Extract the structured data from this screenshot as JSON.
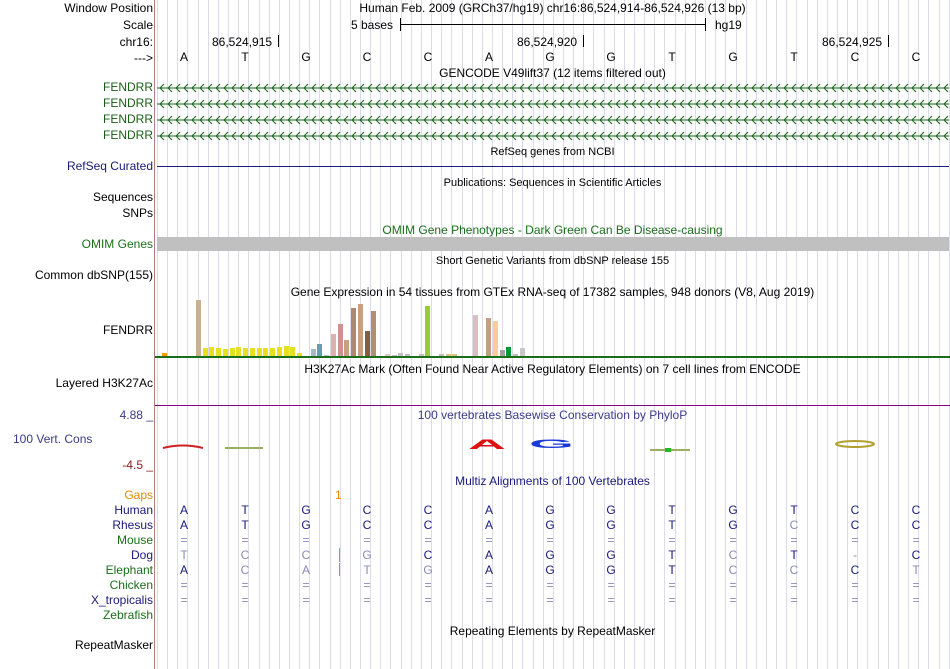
{
  "header": {
    "window_position_label": "Window Position",
    "scale_label": "Scale",
    "chrom_label": "chr16:",
    "strand_label": "--->",
    "position_text": "Human Feb. 2009 (GRCh37/hg19)   chr16:86,524,914-86,524,926 (13 bp)",
    "scale_text": "5 bases",
    "assembly": "hg19",
    "ruler_ticks": [
      "86,524,915",
      "86,524,920",
      "86,524,925"
    ]
  },
  "sequence": [
    "A",
    "T",
    "G",
    "C",
    "C",
    "A",
    "G",
    "G",
    "T",
    "G",
    "T",
    "C",
    "C"
  ],
  "tracks": {
    "gencode": {
      "title": "GENCODE V49lift37 (12 items filtered out)",
      "items": [
        "FENDRR",
        "FENDRR",
        "FENDRR",
        "FENDRR"
      ],
      "color": "#1a5e1a"
    },
    "refseq": {
      "label": "RefSeq Curated",
      "title": "RefSeq genes from NCBI",
      "color": "#1a1a7a"
    },
    "publications": {
      "label_line1": "Sequences",
      "title": "Publications: Sequences in Scientific Articles"
    },
    "snps": {
      "label": "SNPs"
    },
    "omim": {
      "label": "OMIM Genes",
      "title": "OMIM Gene Phenotypes - Dark Green Can Be Disease-causing",
      "color": "#1a6e1a"
    },
    "dbsnp": {
      "label": "Common dbSNP(155)",
      "title": "Short Genetic Variants from dbSNP release 155"
    },
    "gtex": {
      "label": "FENDRR",
      "title": "Gene Expression in 54 tissues from GTEx RNA-seq of 17382 samples, 948 donors (V8, Aug 2019)",
      "colors": [
        "#ff9900",
        "#ffffff",
        "#ffffff",
        "#ffffff",
        "#ffffff",
        "#c8b090",
        "#e6e020",
        "#e6e020",
        "#e6e020",
        "#e6e020",
        "#e6e020",
        "#e6e020",
        "#e6e020",
        "#e6e020",
        "#e6e020",
        "#e6e020",
        "#e6e020",
        "#e6e020",
        "#e6e020",
        "#e6e020",
        "#e6e020",
        "#ffffff",
        "#a0b8d0",
        "#60a0b0",
        "#c0c0c0",
        "#e0b0b0",
        "#d09090",
        "#c8a080",
        "#b08870",
        "#c8a080",
        "#806040",
        "#b09070",
        "#ffffff",
        "#e0c8c0",
        "#c0c0c0",
        "#c0c0c0",
        "#c0c0c0",
        "#ffffff",
        "#c0c0c0",
        "#99cc33",
        "#ffffff",
        "#c0c0c0",
        "#e0c080",
        "#e0c080",
        "#ffffff",
        "#ffffff",
        "#d8c0c0",
        "#ffffff",
        "#c0a080",
        "#ffcc99",
        "#a0a0a0",
        "#009933",
        "#c0c0c0",
        "#c8c8c8"
      ],
      "values": [
        0.06,
        0,
        0,
        0,
        0,
        1.0,
        0.14,
        0.16,
        0.14,
        0.12,
        0.14,
        0.16,
        0.14,
        0.14,
        0.14,
        0.14,
        0.14,
        0.16,
        0.18,
        0.16,
        0.06,
        0,
        0.12,
        0.22,
        0.02,
        0.4,
        0.58,
        0.28,
        0.86,
        0.92,
        0.44,
        0.8,
        0,
        0.04,
        0.02,
        0.06,
        0.04,
        0,
        0.04,
        0.9,
        0,
        0.04,
        0.04,
        0.04,
        0,
        0,
        0.74,
        0,
        0.68,
        0.62,
        0.1,
        0.16,
        0.04,
        0.14
      ]
    },
    "h3k27ac": {
      "label": "Layered H3K27Ac",
      "title": "H3K27Ac Mark (Often Found Near Active Regulatory Elements) on 7 cell lines from ENCODE",
      "color": "#800080"
    },
    "phylop": {
      "label": "100 Vert. Cons",
      "max": "4.88 _",
      "min": "-4.5 _",
      "title": "100 vertebrates Basewise Conservation by PhyloP",
      "color": "#3a3a8a",
      "min_color": "#8a1a1a"
    },
    "multiz": {
      "title": "Multiz Alignments of 100 Vertebrates",
      "gaps_label": "Gaps",
      "gap_count": "1",
      "species": [
        {
          "name": "Human",
          "color": "#1a1a7a",
          "bases": [
            "A",
            "T",
            "G",
            "C",
            "C",
            "A",
            "G",
            "G",
            "T",
            "G",
            "T",
            "C",
            "C"
          ],
          "diff": [
            false,
            false,
            false,
            false,
            false,
            false,
            false,
            false,
            false,
            false,
            false,
            false,
            false
          ]
        },
        {
          "name": "Rhesus",
          "color": "#1a1a7a",
          "bases": [
            "A",
            "T",
            "G",
            "C",
            "C",
            "A",
            "G",
            "G",
            "T",
            "G",
            "C",
            "C",
            "C"
          ],
          "diff": [
            false,
            false,
            false,
            false,
            false,
            false,
            false,
            false,
            false,
            false,
            true,
            false,
            false
          ]
        },
        {
          "name": "Mouse",
          "color": "#1a6e1a",
          "bases": [
            "=",
            "=",
            "=",
            "=",
            "=",
            "=",
            "=",
            "=",
            "=",
            "=",
            "=",
            "=",
            "="
          ],
          "diff": [
            true,
            true,
            true,
            true,
            true,
            true,
            true,
            true,
            true,
            true,
            true,
            true,
            true
          ]
        },
        {
          "name": "Dog",
          "color": "#1a1a7a",
          "bases": [
            "T",
            "C",
            "C",
            "G",
            "C",
            "A",
            "G",
            "G",
            "T",
            "C",
            "T",
            "-",
            "C"
          ],
          "diff": [
            true,
            true,
            true,
            true,
            false,
            false,
            false,
            false,
            false,
            true,
            false,
            true,
            false
          ]
        },
        {
          "name": "Elephant",
          "color": "#1a6e1a",
          "bases": [
            "A",
            "C",
            "A",
            "T",
            "G",
            "A",
            "G",
            "G",
            "T",
            "C",
            "C",
            "C",
            "T"
          ],
          "diff": [
            false,
            true,
            true,
            true,
            true,
            false,
            false,
            false,
            false,
            true,
            true,
            false,
            true
          ]
        },
        {
          "name": "Chicken",
          "color": "#1a6e1a",
          "bases": [
            "=",
            "=",
            "=",
            "=",
            "=",
            "=",
            "=",
            "=",
            "=",
            "=",
            "=",
            "=",
            "="
          ],
          "diff": [
            true,
            true,
            true,
            true,
            true,
            true,
            true,
            true,
            true,
            true,
            true,
            true,
            true
          ]
        },
        {
          "name": "X_tropicalis",
          "color": "#1a1a7a",
          "bases": [
            "=",
            "=",
            "=",
            "=",
            "=",
            "=",
            "=",
            "=",
            "=",
            "=",
            "=",
            "=",
            "="
          ],
          "diff": [
            true,
            true,
            true,
            true,
            true,
            true,
            true,
            true,
            true,
            true,
            true,
            true,
            true
          ]
        },
        {
          "name": "Zebrafish",
          "color": "#1a6e1a",
          "bases": [
            "",
            "",
            "",
            "",
            "",
            "",
            "",
            "",
            "",
            "",
            "",
            "",
            ""
          ],
          "diff": [
            false,
            false,
            false,
            false,
            false,
            false,
            false,
            false,
            false,
            false,
            false,
            false,
            false
          ]
        }
      ]
    },
    "repeatmasker": {
      "label": "RepeatMasker",
      "title": "Repeating Elements by RepeatMasker"
    }
  }
}
